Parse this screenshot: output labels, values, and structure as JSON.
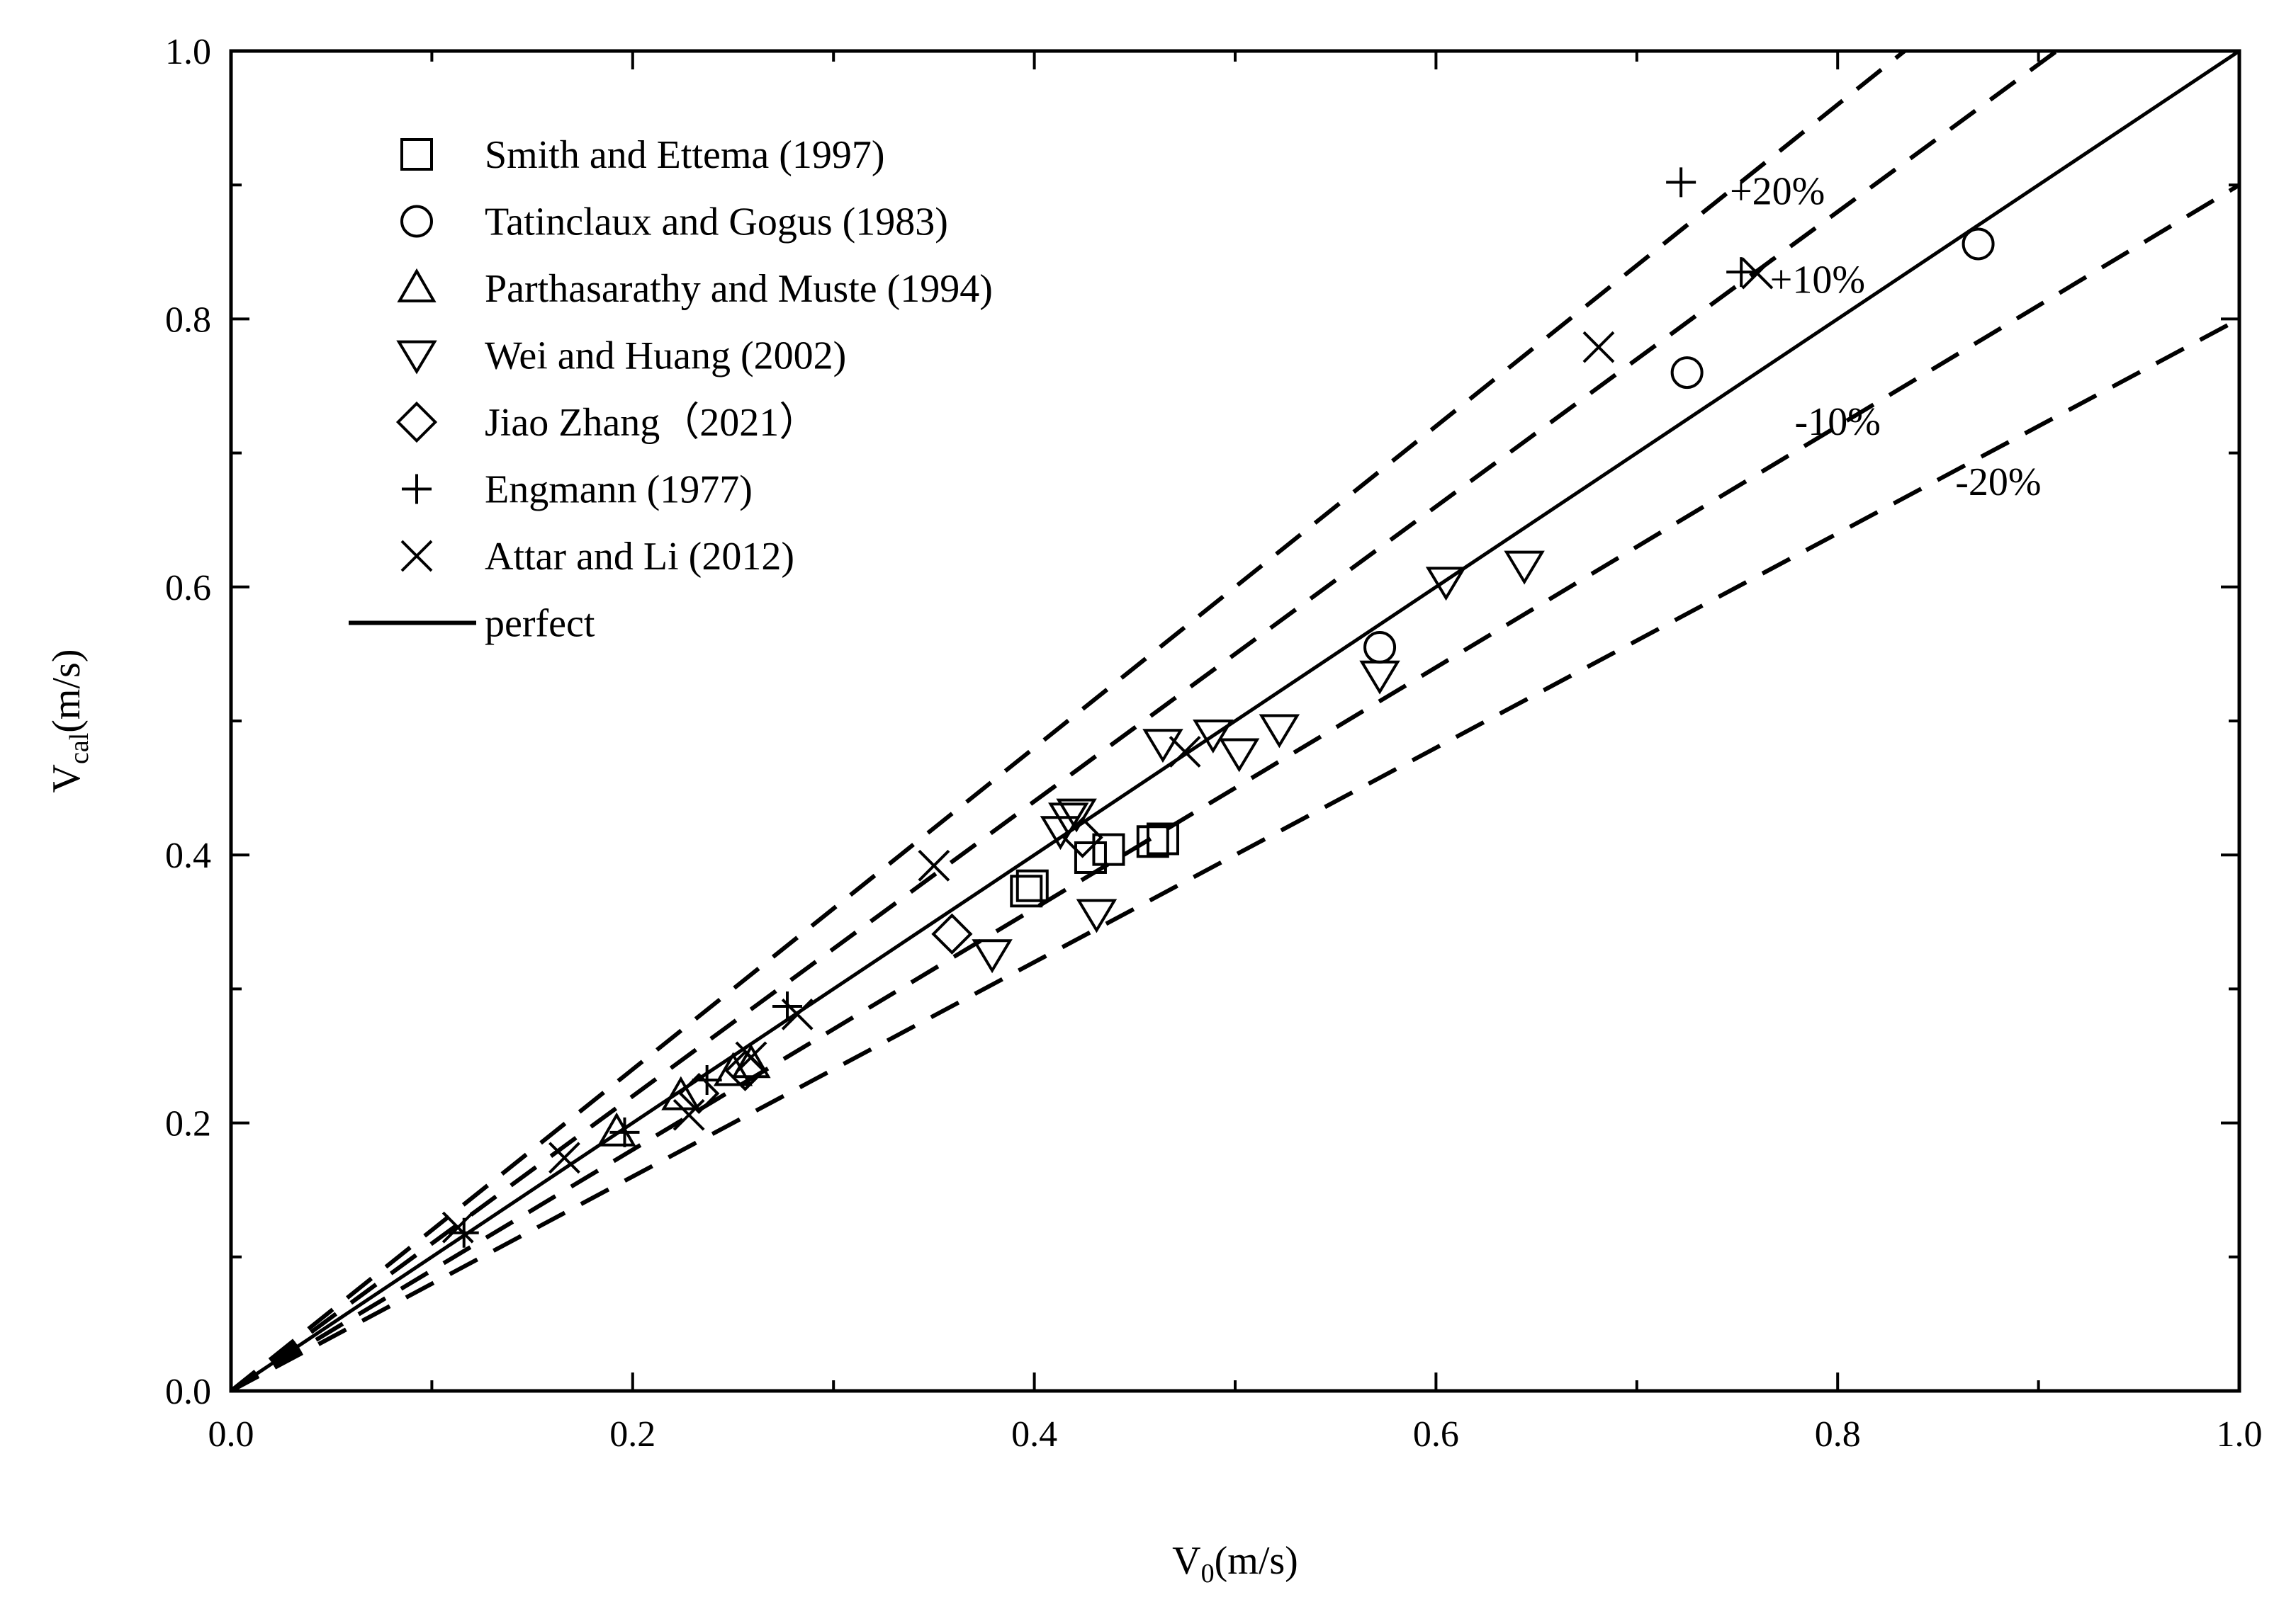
{
  "chart_data": {
    "type": "scatter",
    "xlabel": {
      "main": "V",
      "sub": "0",
      "unit": "(m/s)"
    },
    "ylabel": {
      "main": "V",
      "sub": "cal",
      "unit": "(m/s)"
    },
    "xlim": [
      0,
      1
    ],
    "ylim": [
      0,
      1
    ],
    "x_ticks": [
      "0.0",
      "0.2",
      "0.4",
      "0.6",
      "0.8",
      "1.0"
    ],
    "y_ticks": [
      "0.0",
      "0.2",
      "0.4",
      "0.6",
      "0.8",
      "1.0"
    ],
    "grid": false,
    "legend_position": "top-left",
    "series": [
      {
        "name": "Smith and Ettema (1997)",
        "marker": "square",
        "points": [
          [
            0.396,
            0.373
          ],
          [
            0.399,
            0.377
          ],
          [
            0.428,
            0.398
          ],
          [
            0.437,
            0.404
          ],
          [
            0.459,
            0.41
          ],
          [
            0.464,
            0.412
          ]
        ]
      },
      {
        "name": "Tatinclaux and Gogus (1983)",
        "marker": "circle",
        "points": [
          [
            0.572,
            0.555
          ],
          [
            0.725,
            0.76
          ],
          [
            0.87,
            0.856
          ]
        ]
      },
      {
        "name": "Parthasarathy and Muste (1994)",
        "marker": "triangle-up",
        "points": [
          [
            0.192,
            0.193
          ],
          [
            0.224,
            0.22
          ],
          [
            0.25,
            0.238
          ],
          [
            0.259,
            0.244
          ]
        ]
      },
      {
        "name": "Wei and Huang (2002)",
        "marker": "triangle-down",
        "points": [
          [
            0.379,
            0.326
          ],
          [
            0.413,
            0.418
          ],
          [
            0.417,
            0.428
          ],
          [
            0.421,
            0.431
          ],
          [
            0.431,
            0.356
          ],
          [
            0.464,
            0.483
          ],
          [
            0.489,
            0.49
          ],
          [
            0.502,
            0.476
          ],
          [
            0.522,
            0.494
          ],
          [
            0.572,
            0.534
          ],
          [
            0.605,
            0.604
          ],
          [
            0.644,
            0.616
          ]
        ]
      },
      {
        "name": "Jiao Zhang（2021）",
        "marker": "diamond",
        "points": [
          [
            0.359,
            0.341
          ],
          [
            0.424,
            0.413
          ],
          [
            0.233,
            0.222
          ],
          [
            0.256,
            0.239
          ]
        ]
      },
      {
        "name": "Engmann (1977)",
        "marker": "plus",
        "points": [
          [
            0.116,
            0.118
          ],
          [
            0.196,
            0.193
          ],
          [
            0.237,
            0.232
          ],
          [
            0.277,
            0.287
          ],
          [
            0.722,
            0.902
          ],
          [
            0.752,
            0.835
          ]
        ]
      },
      {
        "name": "Attar and Li (2012)",
        "marker": "cross",
        "points": [
          [
            0.113,
            0.122
          ],
          [
            0.166,
            0.174
          ],
          [
            0.228,
            0.206
          ],
          [
            0.259,
            0.249
          ],
          [
            0.282,
            0.281
          ],
          [
            0.35,
            0.392
          ],
          [
            0.475,
            0.477
          ],
          [
            0.681,
            0.779
          ],
          [
            0.76,
            0.834
          ]
        ]
      }
    ],
    "reference_lines": [
      {
        "name": "perfect",
        "slope": 1.0,
        "style": "solid"
      },
      {
        "name": "+20%",
        "slope": 1.2,
        "style": "dashed"
      },
      {
        "name": "+10%",
        "slope": 1.1,
        "style": "dashed"
      },
      {
        "name": "-10%",
        "slope": 0.9,
        "style": "dashed"
      },
      {
        "name": "-20%",
        "slope": 0.8,
        "style": "dashed"
      }
    ],
    "band_labels": [
      {
        "text": "+20%",
        "x": 0.77,
        "y": 0.895
      },
      {
        "text": "+10%",
        "x": 0.79,
        "y": 0.829
      },
      {
        "text": "-10%",
        "x": 0.8,
        "y": 0.723
      },
      {
        "text": "-20%",
        "x": 0.88,
        "y": 0.678
      }
    ]
  }
}
